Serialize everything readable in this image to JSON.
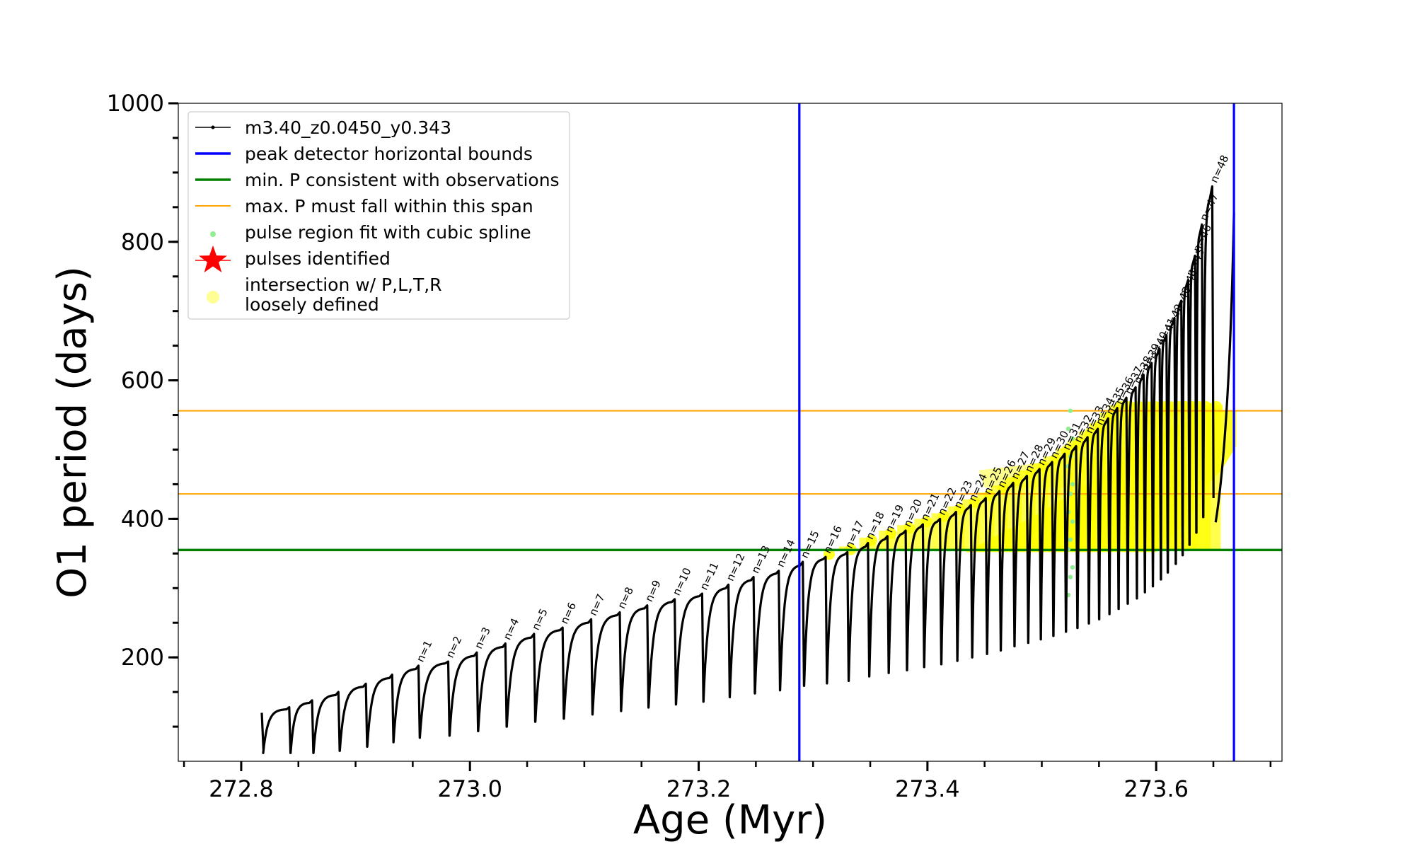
{
  "chart_data": {
    "type": "line",
    "xlabel": "Age (Myr)",
    "ylabel": "O1 period (days)",
    "xlim": [
      272.745,
      273.71
    ],
    "ylim": [
      50,
      1000
    ],
    "x_major_ticks": [
      {
        "value": 272.8,
        "label": "272.8"
      },
      {
        "value": 273.0,
        "label": "273.0"
      },
      {
        "value": 273.2,
        "label": "273.2"
      },
      {
        "value": 273.4,
        "label": "273.4"
      },
      {
        "value": 273.6,
        "label": "273.6"
      }
    ],
    "y_major_ticks": [
      {
        "value": 200,
        "label": "200"
      },
      {
        "value": 400,
        "label": "400"
      },
      {
        "value": 600,
        "label": "600"
      },
      {
        "value": 800,
        "label": "800"
      },
      {
        "value": 1000,
        "label": "1000"
      }
    ],
    "x_minor_step": 0.05,
    "y_minor_step": 50,
    "grid": false,
    "legend_position": "top-left",
    "vertical_bounds": [
      273.288,
      273.668
    ],
    "min_period": 355,
    "max_period_span": [
      436,
      556
    ],
    "pulse_peaks": [
      {
        "n": 1,
        "age": 272.955,
        "period": 188
      },
      {
        "n": 2,
        "age": 272.981,
        "period": 194
      },
      {
        "n": 3,
        "age": 273.006,
        "period": 207
      },
      {
        "n": 4,
        "age": 273.031,
        "period": 220
      },
      {
        "n": 5,
        "age": 273.056,
        "period": 234
      },
      {
        "n": 6,
        "age": 273.081,
        "period": 243
      },
      {
        "n": 7,
        "age": 273.106,
        "period": 255
      },
      {
        "n": 8,
        "age": 273.131,
        "period": 265
      },
      {
        "n": 9,
        "age": 273.155,
        "period": 275
      },
      {
        "n": 10,
        "age": 273.179,
        "period": 284
      },
      {
        "n": 11,
        "age": 273.203,
        "period": 292
      },
      {
        "n": 12,
        "age": 273.226,
        "period": 305
      },
      {
        "n": 13,
        "age": 273.248,
        "period": 316
      },
      {
        "n": 14,
        "age": 273.27,
        "period": 325
      },
      {
        "n": 15,
        "age": 273.291,
        "period": 338
      },
      {
        "n": 16,
        "age": 273.311,
        "period": 345
      },
      {
        "n": 17,
        "age": 273.33,
        "period": 352
      },
      {
        "n": 18,
        "age": 273.348,
        "period": 365
      },
      {
        "n": 19,
        "age": 273.365,
        "period": 375
      },
      {
        "n": 20,
        "age": 273.381,
        "period": 383
      },
      {
        "n": 21,
        "age": 273.396,
        "period": 392
      },
      {
        "n": 22,
        "age": 273.411,
        "period": 400
      },
      {
        "n": 23,
        "age": 273.425,
        "period": 410
      },
      {
        "n": 24,
        "age": 273.438,
        "period": 420
      },
      {
        "n": 25,
        "age": 273.451,
        "period": 430
      },
      {
        "n": 26,
        "age": 273.463,
        "period": 440
      },
      {
        "n": 27,
        "age": 273.475,
        "period": 452
      },
      {
        "n": 28,
        "age": 273.487,
        "period": 462
      },
      {
        "n": 29,
        "age": 273.498,
        "period": 472
      },
      {
        "n": 30,
        "age": 273.509,
        "period": 482
      },
      {
        "n": 31,
        "age": 273.52,
        "period": 494
      },
      {
        "n": 32,
        "age": 273.53,
        "period": 505
      },
      {
        "n": 33,
        "age": 273.54,
        "period": 518
      },
      {
        "n": 34,
        "age": 273.549,
        "period": 530
      },
      {
        "n": 35,
        "age": 273.558,
        "period": 545
      },
      {
        "n": 36,
        "age": 273.566,
        "period": 560
      },
      {
        "n": 37,
        "age": 273.574,
        "period": 575
      },
      {
        "n": 38,
        "age": 273.582,
        "period": 590
      },
      {
        "n": 39,
        "age": 273.589,
        "period": 608
      },
      {
        "n": 40,
        "age": 273.596,
        "period": 625
      },
      {
        "n": 41,
        "age": 273.603,
        "period": 645
      },
      {
        "n": 42,
        "age": 273.609,
        "period": 665
      },
      {
        "n": 43,
        "age": 273.616,
        "period": 690
      },
      {
        "n": 44,
        "age": 273.622,
        "period": 715
      },
      {
        "n": 45,
        "age": 273.628,
        "period": 745
      },
      {
        "n": 46,
        "age": 273.634,
        "period": 780
      },
      {
        "n": 47,
        "age": 273.64,
        "period": 825
      },
      {
        "n": 48,
        "age": 273.649,
        "period": 880
      }
    ],
    "legend": [
      {
        "key": "track",
        "label": "m3.40_z0.0450_y0.343",
        "color": "#000000"
      },
      {
        "key": "bounds",
        "label": "peak detector horizontal bounds",
        "color": "#0000ff"
      },
      {
        "key": "minp",
        "label": "min. P consistent with observations",
        "color": "#008000"
      },
      {
        "key": "maxp",
        "label": "max. P must fall within this span",
        "color": "#ffa500"
      },
      {
        "key": "spline",
        "label": "pulse region fit with cubic spline",
        "color": "#90ee90"
      },
      {
        "key": "pulses",
        "label": "pulses identified",
        "color": "#ff0000"
      },
      {
        "key": "intersect",
        "label": "intersection w/ P,L,T,R",
        "label2": "loosely defined",
        "color": "#ffff66"
      }
    ],
    "colors": {
      "track": "#000000",
      "bounds": "#0000ff",
      "min_period": "#008000",
      "max_period": "#ffa500",
      "spline": "#90ee90",
      "pulses": "#ff0000",
      "intersection": "#ffff00"
    }
  }
}
